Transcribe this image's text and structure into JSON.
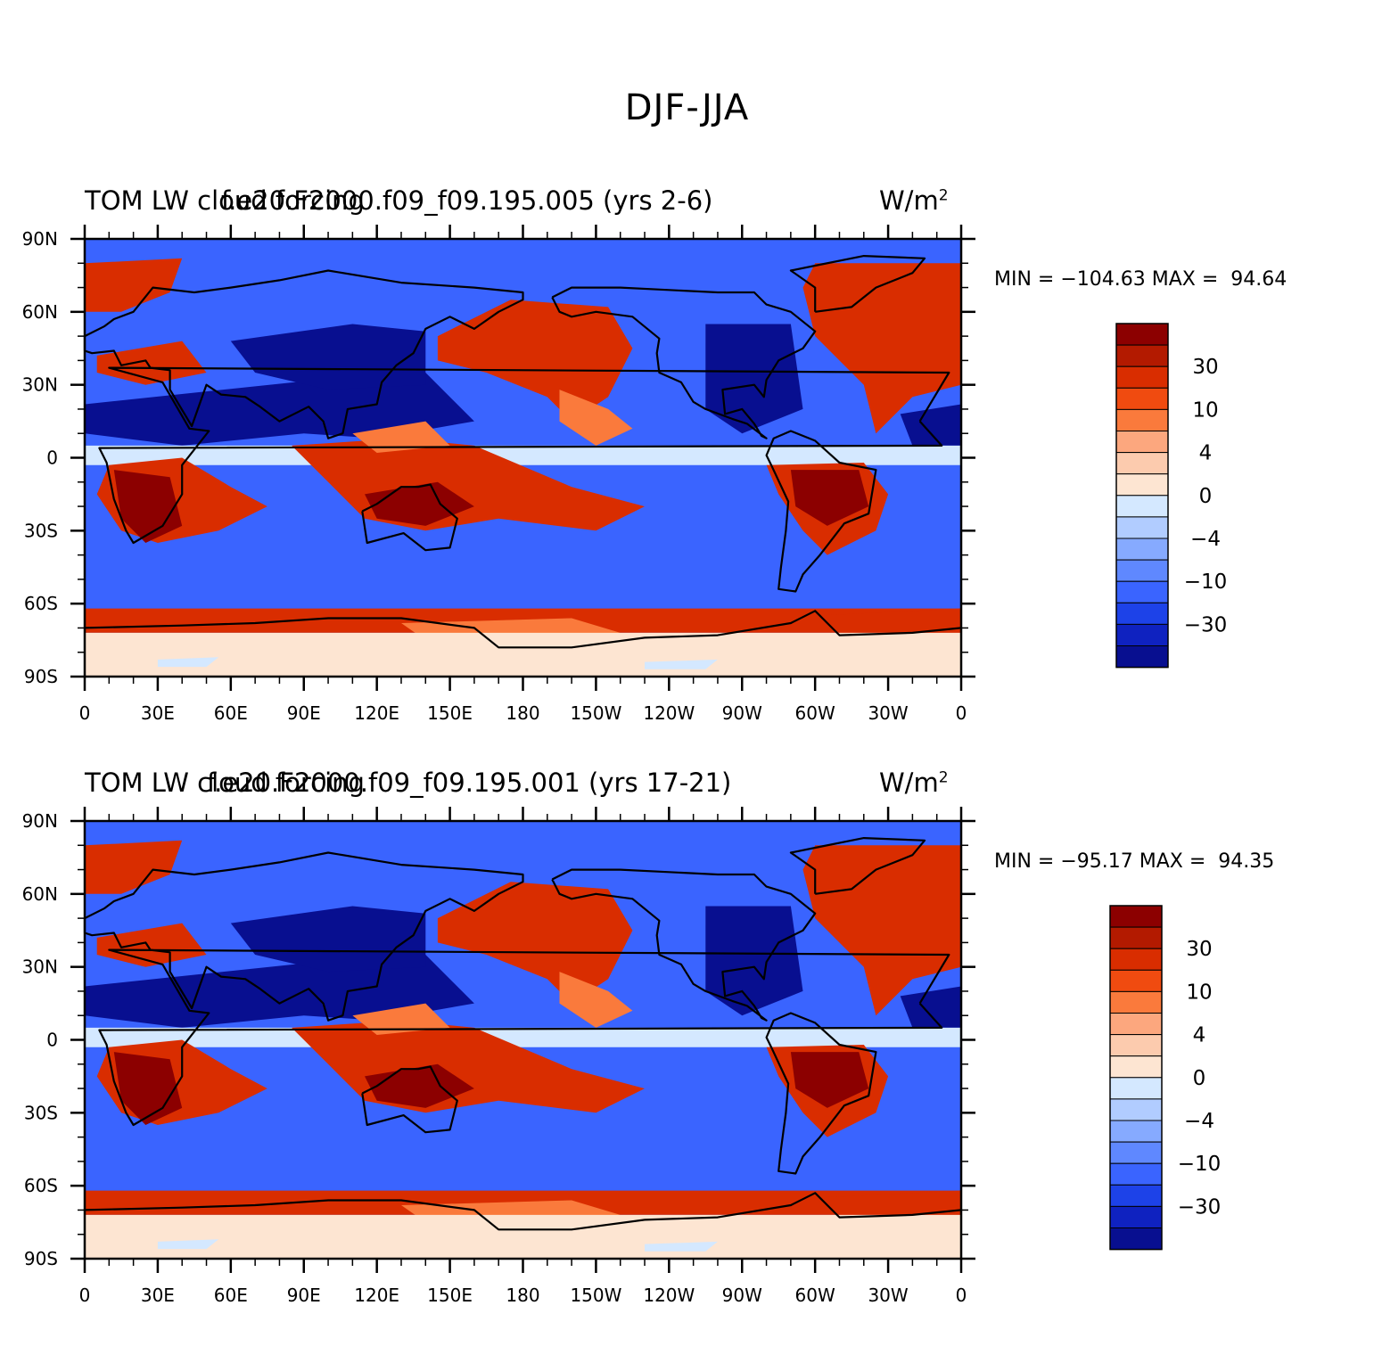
{
  "title": "DJF-JJA",
  "panels": [
    {
      "variable_label": "TOM LW cloud forcing",
      "case_label": "f.e20.F2000.f09_f09.195.005 (yrs 2-6)",
      "units": "W/m",
      "units_sup": "2",
      "minmax": "MIN = −104.63 MAX =  94.64",
      "min": -104.63,
      "max": 94.64
    },
    {
      "variable_label": "TOM LW cloud forcing",
      "case_label": "f.e20.F2000.f09_f09.195.001 (yrs 17-21)",
      "units": "W/m",
      "units_sup": "2",
      "minmax": "MIN = −95.17 MAX =  94.35",
      "min": -95.17,
      "max": 94.35
    }
  ],
  "lat_labels": [
    "90N",
    "60N",
    "30N",
    "0",
    "30S",
    "60S",
    "90S"
  ],
  "lon_labels": [
    "0",
    "30E",
    "60E",
    "90E",
    "120E",
    "150E",
    "180",
    "150W",
    "120W",
    "90W",
    "60W",
    "30W",
    "0"
  ],
  "colorbar": {
    "labels": [
      "30",
      "10",
      "4",
      "0",
      "−4",
      "−10",
      "−30"
    ],
    "colors": [
      "#8c0000",
      "#b31a00",
      "#d92d00",
      "#f04b10",
      "#fa7a3c",
      "#fca77e",
      "#fccbae",
      "#fde5d2",
      "#d4e8ff",
      "#b1ccff",
      "#86aaff",
      "#5f88ff",
      "#3a64ff",
      "#1d42e8",
      "#0f22c0",
      "#080f90"
    ]
  },
  "colors": {
    "deep_red": "#8c0000",
    "red": "#d92d00",
    "orange": "#fa7a3c",
    "pale_orange": "#fde5d2",
    "pale_blue": "#d4e8ff",
    "blue": "#3a64ff",
    "deep_blue": "#080f90",
    "coastline": "#000000"
  }
}
